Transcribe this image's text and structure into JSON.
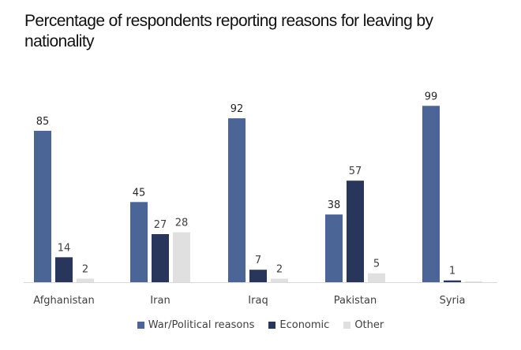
{
  "chart_data": {
    "type": "bar",
    "title": "Percentage of respondents reporting reasons for leaving by nationality",
    "xlabel": "",
    "ylabel": "",
    "ylim": [
      0,
      100
    ],
    "grid": false,
    "legend_position": "bottom",
    "categories": [
      "Afghanistan",
      "Iran",
      "Iraq",
      "Pakistan",
      "Syria"
    ],
    "series": [
      {
        "name": "War/Political reasons",
        "color": "#4a6596",
        "values": [
          85,
          45,
          92,
          38,
          99
        ],
        "labels": [
          "85",
          "45",
          "92",
          "38",
          "99"
        ]
      },
      {
        "name": "Economic",
        "color": "#27365a",
        "values": [
          14,
          27,
          7,
          57,
          1
        ],
        "labels": [
          "14",
          "27",
          "7",
          "57",
          "1"
        ]
      },
      {
        "name": "Other",
        "color": "#e0e0e0",
        "values": [
          2,
          28,
          2,
          5,
          0
        ],
        "labels": [
          "2",
          "28",
          "2",
          "5",
          ""
        ]
      }
    ]
  }
}
